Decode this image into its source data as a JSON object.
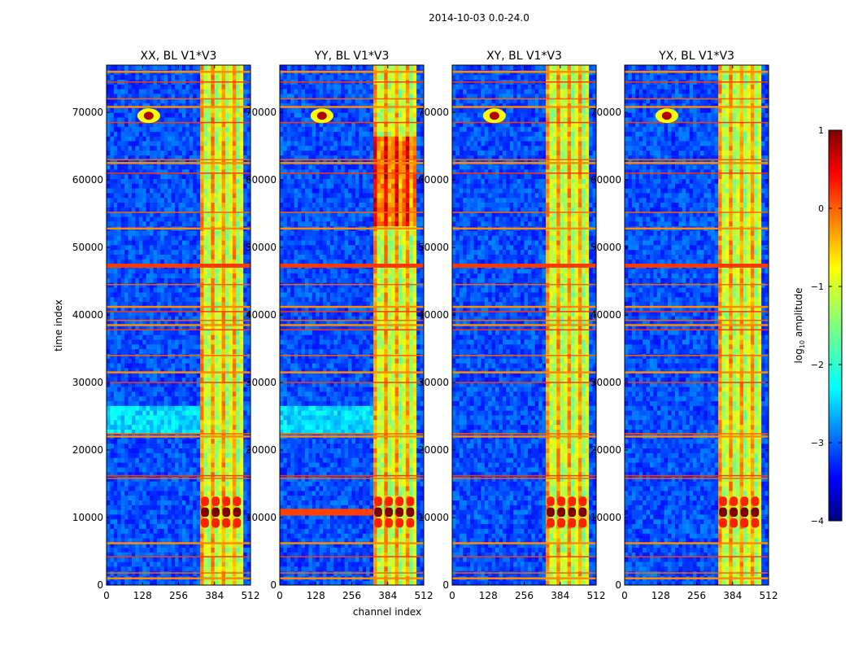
{
  "chart_data": {
    "type": "heatmap",
    "suptitle": "2014-10-03 0.0-24.0",
    "xlabel": "channel index",
    "ylabel": "time index",
    "xlim": [
      0,
      512
    ],
    "ylim": [
      0,
      77000
    ],
    "xticks": [
      0,
      128,
      256,
      384,
      512
    ],
    "yticks": [
      0,
      10000,
      20000,
      30000,
      40000,
      50000,
      60000,
      70000
    ],
    "panels": [
      {
        "title": "XX, BL V1*V3",
        "pol": "XX"
      },
      {
        "title": "YY, BL V1*V3",
        "pol": "YY"
      },
      {
        "title": "XY, BL V1*V3",
        "pol": "XY"
      },
      {
        "title": "YX, BL V1*V3",
        "pol": "YX"
      }
    ],
    "colorbar": {
      "label": "log",
      "label_sub": "10",
      "label_rest": " amplitude",
      "range": [
        -4,
        1
      ],
      "ticks": [
        "1",
        "0",
        "−1",
        "−2",
        "−3",
        "−4"
      ],
      "colormap": "jet"
    },
    "rfi_time_bands": [
      1000,
      1800,
      4200,
      6200,
      15800,
      16200,
      22000,
      22400,
      30000,
      31500,
      34000,
      37800,
      38500,
      39200,
      40500,
      41200,
      44500,
      47300,
      52800,
      55200,
      61000,
      62500,
      63000,
      68500,
      70800,
      72000,
      74500,
      76000
    ],
    "bright_channel_band": [
      330,
      480
    ],
    "hot_spot": {
      "channel": 150,
      "time": 69500
    },
    "burst_time": 10800
  }
}
